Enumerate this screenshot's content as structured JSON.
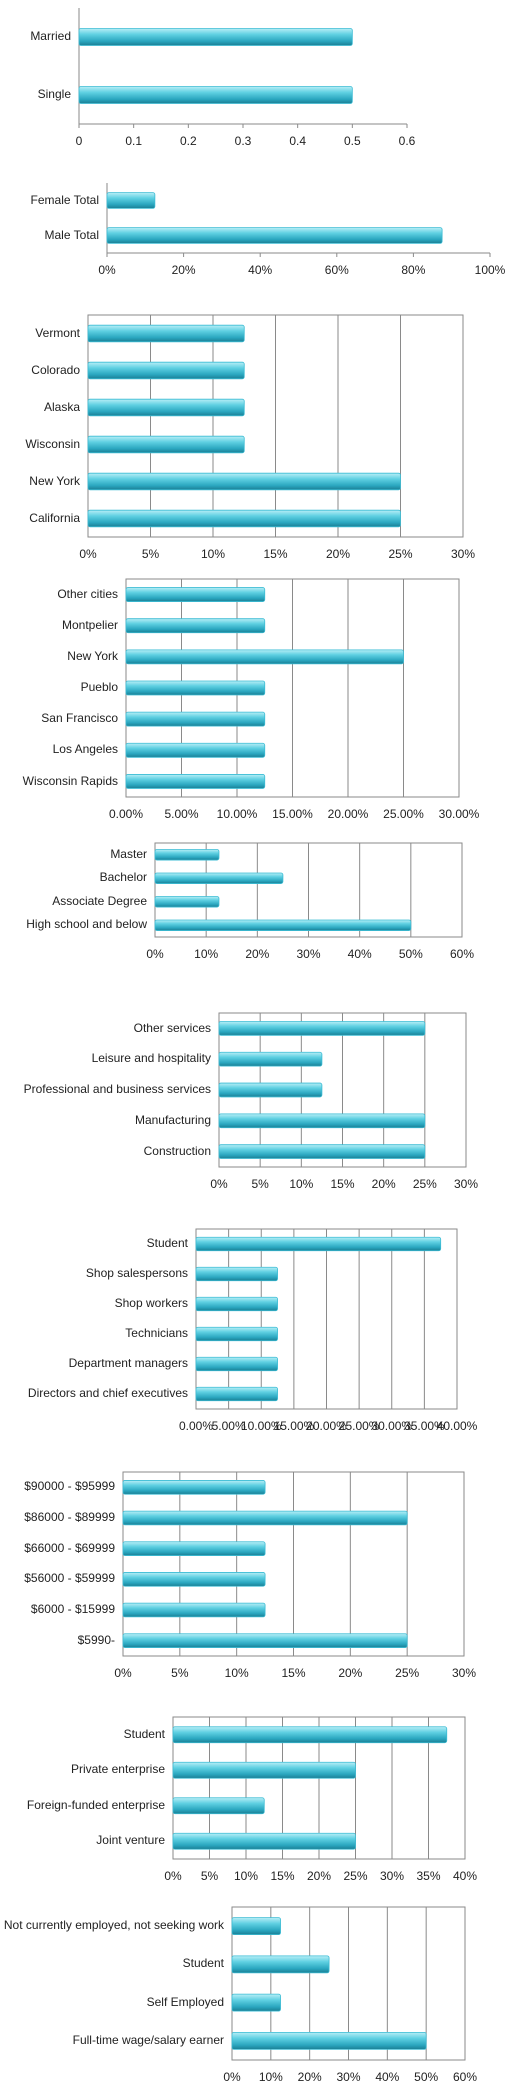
{
  "chart_data": [
    {
      "type": "bar",
      "orientation": "horizontal",
      "grid": false,
      "color": "#3cbcd4",
      "categories": [
        "Married",
        "Single"
      ],
      "values": [
        0.5,
        0.5
      ],
      "xlim": [
        0,
        0.6
      ],
      "xticks": [
        0,
        0.1,
        0.2,
        0.3,
        0.4,
        0.5,
        0.6
      ]
    },
    {
      "type": "bar",
      "orientation": "horizontal",
      "grid": false,
      "color": "#3cbcd4",
      "categories": [
        "Female Total",
        "Male Total"
      ],
      "values": [
        12.5,
        87.5
      ],
      "xlim": [
        0,
        100
      ],
      "xticks": [
        {
          "value": 0,
          "label": "0%"
        },
        {
          "value": 20,
          "label": "20%"
        },
        {
          "value": 40,
          "label": "40%"
        },
        {
          "value": 60,
          "label": "60%"
        },
        {
          "value": 80,
          "label": "80%"
        },
        {
          "value": 100,
          "label": "100%"
        }
      ]
    },
    {
      "type": "bar",
      "orientation": "horizontal",
      "grid": true,
      "color": "#3cbcd4",
      "categories": [
        "Vermont",
        "Colorado",
        "Alaska",
        "Wisconsin",
        "New York",
        "California"
      ],
      "values": [
        12.5,
        12.5,
        12.5,
        12.5,
        25,
        25
      ],
      "xlim": [
        0,
        30
      ],
      "xticks": [
        {
          "value": 0,
          "label": "0%"
        },
        {
          "value": 5,
          "label": "5%"
        },
        {
          "value": 10,
          "label": "10%"
        },
        {
          "value": 15,
          "label": "15%"
        },
        {
          "value": 20,
          "label": "20%"
        },
        {
          "value": 25,
          "label": "25%"
        },
        {
          "value": 30,
          "label": "30%"
        }
      ]
    },
    {
      "type": "bar",
      "orientation": "horizontal",
      "grid": true,
      "color": "#3cbcd4",
      "categories": [
        "Other cities",
        "Montpelier",
        "New York",
        "Pueblo",
        "San Francisco",
        "Los Angeles",
        "Wisconsin Rapids"
      ],
      "values": [
        12.5,
        12.5,
        25,
        12.5,
        12.5,
        12.5,
        12.5
      ],
      "xlim": [
        0,
        30
      ],
      "xticks": [
        {
          "value": 0,
          "label": "0.00%"
        },
        {
          "value": 5,
          "label": "5.00%"
        },
        {
          "value": 10,
          "label": "10.00%"
        },
        {
          "value": 15,
          "label": "15.00%"
        },
        {
          "value": 20,
          "label": "20.00%"
        },
        {
          "value": 25,
          "label": "25.00%"
        },
        {
          "value": 30,
          "label": "30.00%"
        }
      ]
    },
    {
      "type": "bar",
      "orientation": "horizontal",
      "grid": true,
      "color": "#3cbcd4",
      "categories": [
        "Master",
        "Bachelor",
        "Associate Degree",
        "High school and below"
      ],
      "values": [
        12.5,
        25,
        12.5,
        50
      ],
      "xlim": [
        0,
        60
      ],
      "xticks": [
        {
          "value": 0,
          "label": "0%"
        },
        {
          "value": 10,
          "label": "10%"
        },
        {
          "value": 20,
          "label": "20%"
        },
        {
          "value": 30,
          "label": "30%"
        },
        {
          "value": 40,
          "label": "40%"
        },
        {
          "value": 50,
          "label": "50%"
        },
        {
          "value": 60,
          "label": "60%"
        }
      ]
    },
    {
      "type": "bar",
      "orientation": "horizontal",
      "grid": true,
      "color": "#3cbcd4",
      "categories": [
        "Other services",
        "Leisure and hospitality",
        "Professional and  business services",
        "Manufacturing",
        "Construction"
      ],
      "values": [
        25,
        12.5,
        12.5,
        25,
        25
      ],
      "xlim": [
        0,
        30
      ],
      "xticks": [
        {
          "value": 0,
          "label": "0%"
        },
        {
          "value": 5,
          "label": "5%"
        },
        {
          "value": 10,
          "label": "10%"
        },
        {
          "value": 15,
          "label": "15%"
        },
        {
          "value": 20,
          "label": "20%"
        },
        {
          "value": 25,
          "label": "25%"
        },
        {
          "value": 30,
          "label": "30%"
        }
      ]
    },
    {
      "type": "bar",
      "orientation": "horizontal",
      "grid": true,
      "color": "#3cbcd4",
      "categories": [
        "Student",
        "Shop salespersons",
        "Shop workers",
        "Technicians",
        "Department managers",
        "Directors and chief executives"
      ],
      "values": [
        37.5,
        12.5,
        12.5,
        12.5,
        12.5,
        12.5
      ],
      "xlim": [
        0,
        40
      ],
      "xticks": [
        {
          "value": 0,
          "label": "0.00%"
        },
        {
          "value": 5,
          "label": "5.00%"
        },
        {
          "value": 10,
          "label": "10.00%"
        },
        {
          "value": 15,
          "label": "15.00%"
        },
        {
          "value": 20,
          "label": "20.00%"
        },
        {
          "value": 25,
          "label": "25.00%"
        },
        {
          "value": 30,
          "label": "30.00%"
        },
        {
          "value": 35,
          "label": "35.00%"
        },
        {
          "value": 40,
          "label": "40.00%"
        }
      ]
    },
    {
      "type": "bar",
      "orientation": "horizontal",
      "grid": true,
      "color": "#3cbcd4",
      "categories": [
        "$90000 - $95999",
        "$86000 - $89999",
        "$66000 - $69999",
        "$56000 - $59999",
        "$6000 - $15999",
        "$5990-"
      ],
      "values": [
        12.5,
        25,
        12.5,
        12.5,
        12.5,
        25
      ],
      "xlim": [
        0,
        30
      ],
      "xticks": [
        {
          "value": 0,
          "label": "0%"
        },
        {
          "value": 5,
          "label": "5%"
        },
        {
          "value": 10,
          "label": "10%"
        },
        {
          "value": 15,
          "label": "15%"
        },
        {
          "value": 20,
          "label": "20%"
        },
        {
          "value": 25,
          "label": "25%"
        },
        {
          "value": 30,
          "label": "30%"
        }
      ]
    },
    {
      "type": "bar",
      "orientation": "horizontal",
      "grid": true,
      "color": "#3cbcd4",
      "categories": [
        "Student",
        "Private enterprise",
        "Foreign-funded enterprise",
        "Joint venture"
      ],
      "values": [
        37.5,
        25,
        12.5,
        25
      ],
      "xlim": [
        0,
        40
      ],
      "xticks": [
        {
          "value": 0,
          "label": "0%"
        },
        {
          "value": 5,
          "label": "5%"
        },
        {
          "value": 10,
          "label": "10%"
        },
        {
          "value": 15,
          "label": "15%"
        },
        {
          "value": 20,
          "label": "20%"
        },
        {
          "value": 25,
          "label": "25%"
        },
        {
          "value": 30,
          "label": "30%"
        },
        {
          "value": 35,
          "label": "35%"
        },
        {
          "value": 40,
          "label": "40%"
        }
      ]
    },
    {
      "type": "bar",
      "orientation": "horizontal",
      "grid": true,
      "color": "#3cbcd4",
      "categories": [
        "Not currently employed, not seeking work",
        "Student",
        "Self Employed",
        "Full-time wage/salary earner"
      ],
      "values": [
        12.5,
        25,
        12.5,
        50
      ],
      "xlim": [
        0,
        60
      ],
      "xticks": [
        {
          "value": 0,
          "label": "0%"
        },
        {
          "value": 10,
          "label": "10%"
        },
        {
          "value": 20,
          "label": "20%"
        },
        {
          "value": 30,
          "label": "30%"
        },
        {
          "value": 40,
          "label": "40%"
        },
        {
          "value": 50,
          "label": "50%"
        },
        {
          "value": 60,
          "label": "60%"
        }
      ]
    }
  ]
}
